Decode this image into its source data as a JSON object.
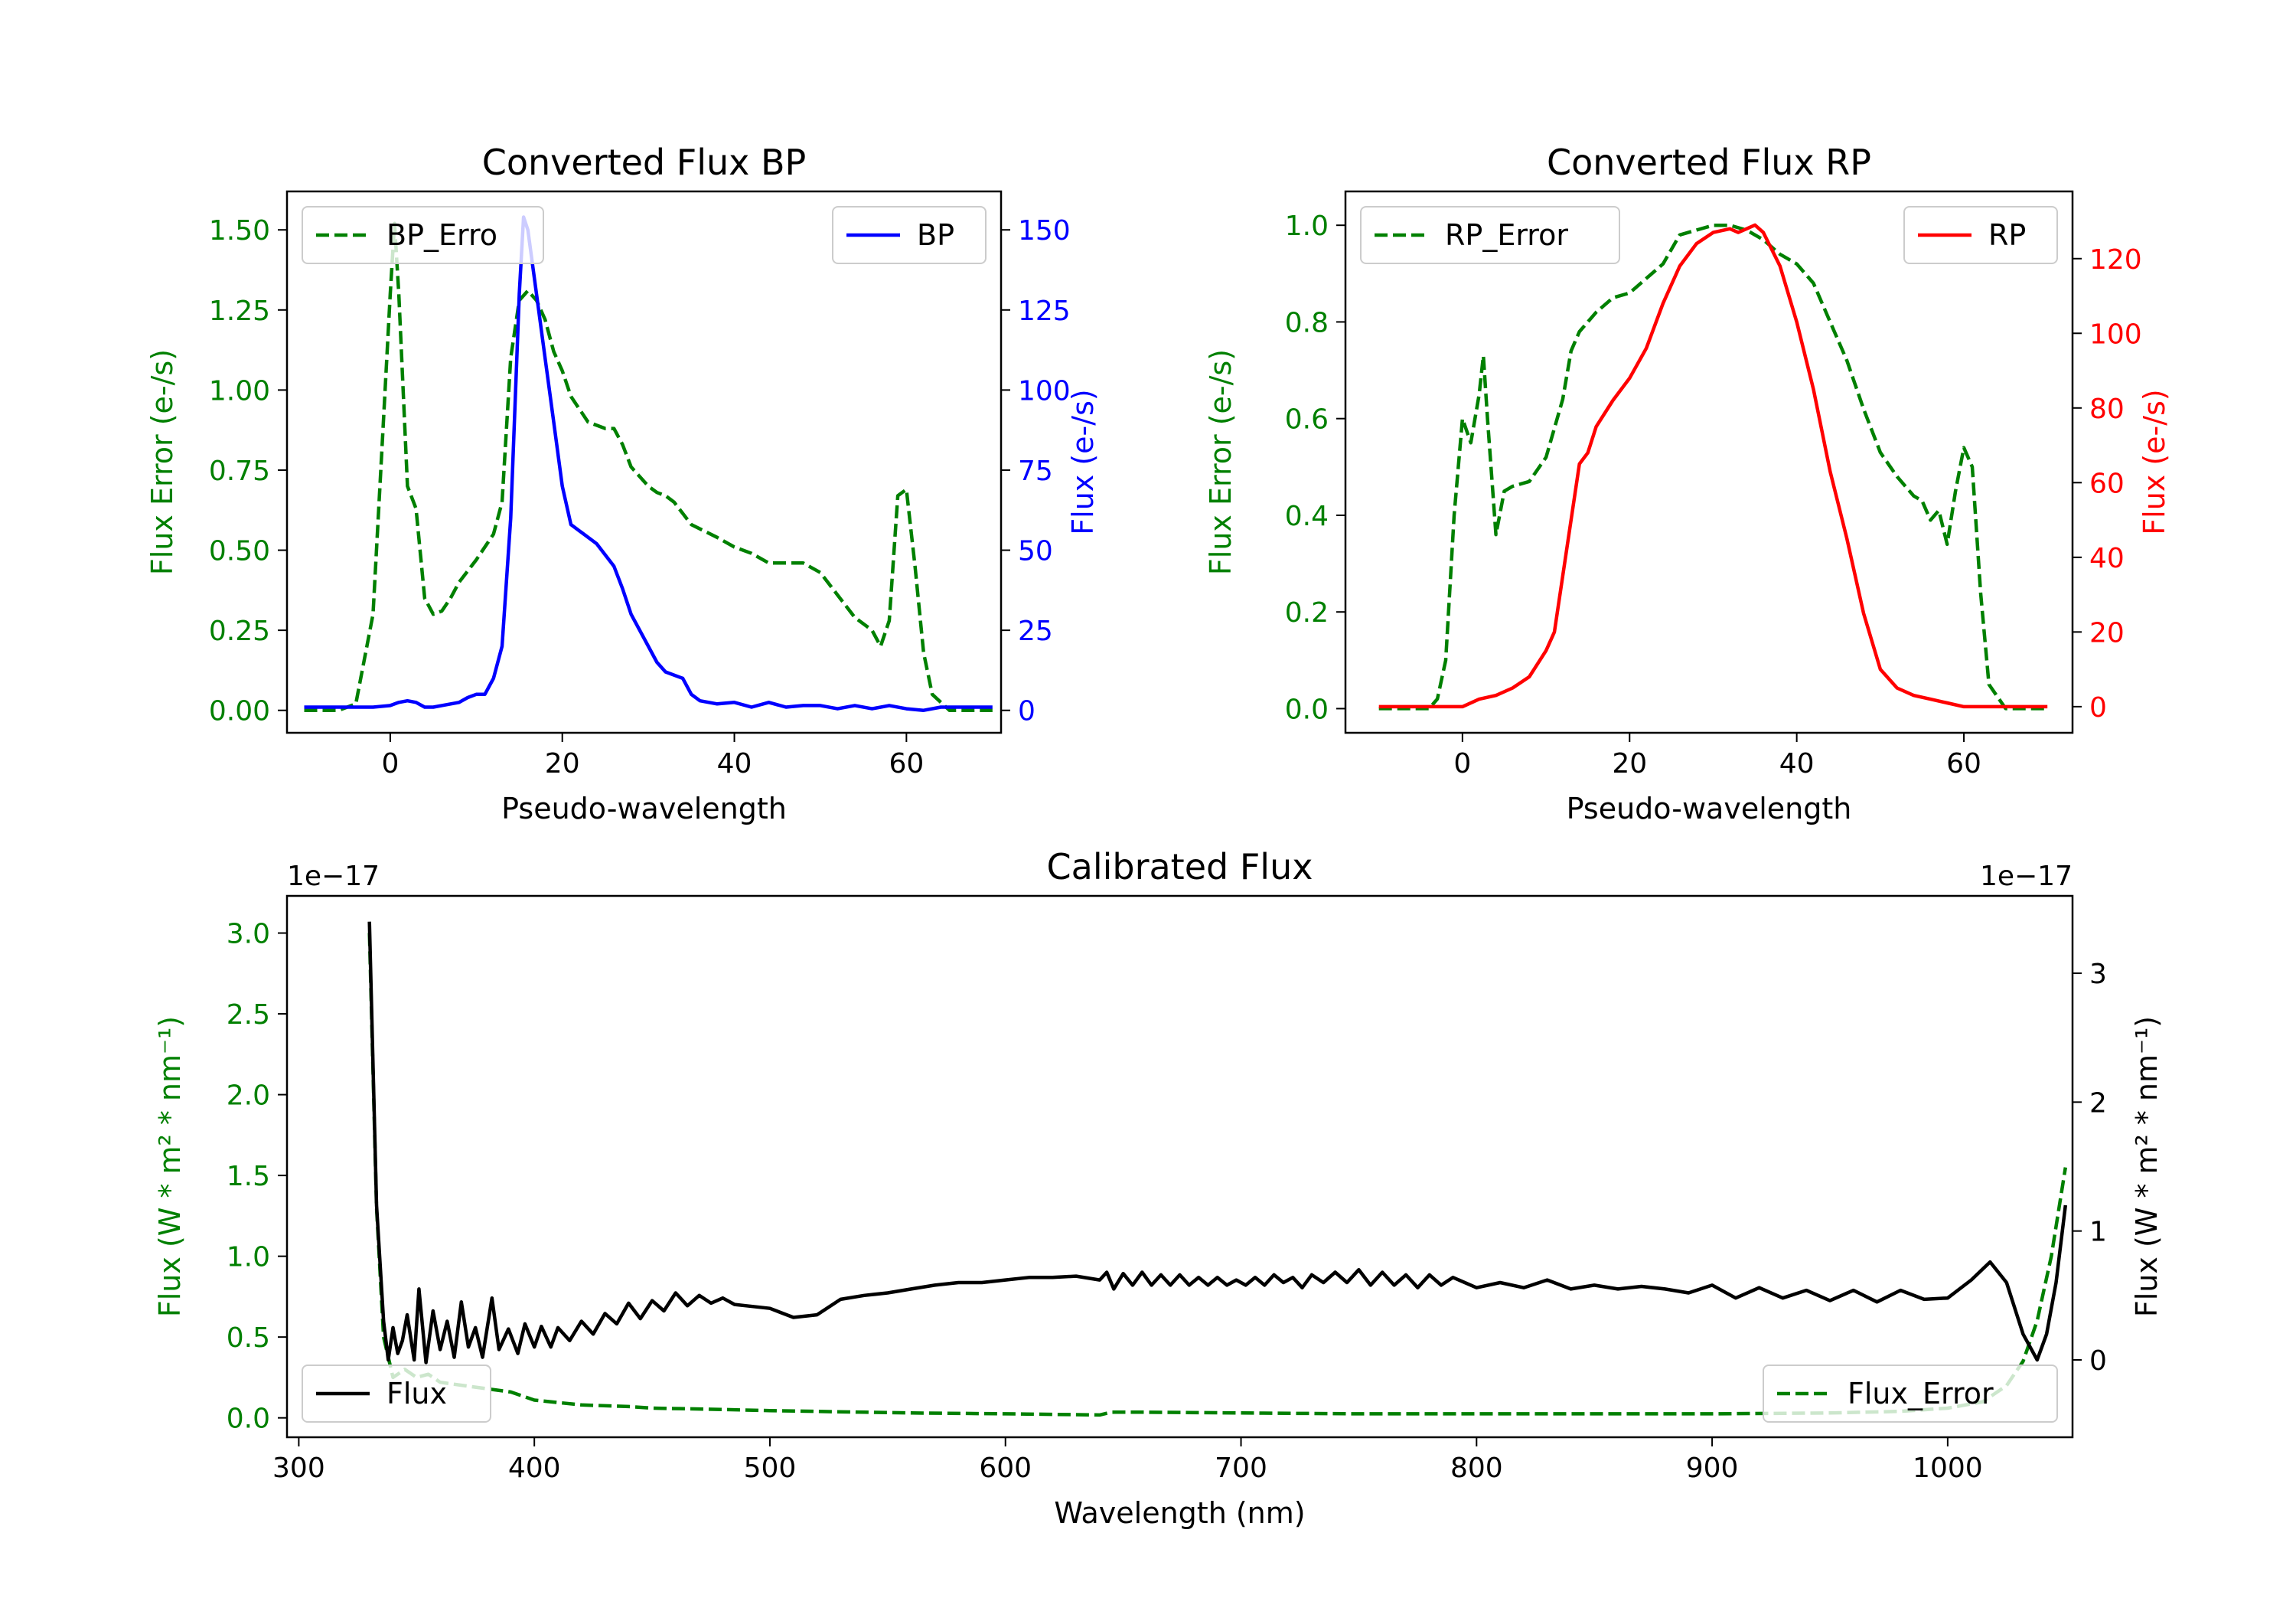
{
  "chart_data": [
    {
      "type": "line",
      "title": "Converted Flux BP",
      "xlabel": "Pseudo-wavelength",
      "ylabel_left": "Flux Error (e-/s)",
      "ylabel_right": "Flux (e-/s)",
      "xlim": [
        -12,
        71
      ],
      "ylim_left": [
        -0.07,
        1.62
      ],
      "ylim_right": [
        -7,
        162
      ],
      "xticks": [
        0,
        20,
        40,
        60
      ],
      "yticks_left": [
        0.0,
        0.25,
        0.5,
        0.75,
        1.0,
        1.25,
        1.5
      ],
      "yticks_left_labels": [
        "0.00",
        "0.25",
        "0.50",
        "0.75",
        "1.00",
        "1.25",
        "1.50"
      ],
      "yticks_right": [
        0,
        25,
        50,
        75,
        100,
        125,
        150
      ],
      "left_color": "#008000",
      "right_color": "#0000ff",
      "legend_left": "top-left",
      "legend_right": "top-right",
      "series": [
        {
          "name": "BP_Error",
          "legend_label": "BP_Erro",
          "axis": "left",
          "style": "dashed",
          "color": "#008000",
          "x": [
            -10,
            -6,
            -4,
            -2,
            -1,
            0,
            0.5,
            1,
            2,
            3,
            4,
            5,
            6,
            7,
            8,
            10,
            12,
            13,
            14,
            15,
            16,
            17,
            18,
            19,
            20,
            21,
            23,
            25,
            26,
            27,
            28,
            30,
            31,
            32,
            33,
            35,
            38,
            40,
            42,
            44,
            46,
            48,
            50,
            52,
            54,
            56,
            57,
            58,
            59,
            60,
            61,
            62,
            63,
            65,
            70
          ],
          "y": [
            0.0,
            0.0,
            0.02,
            0.3,
            0.8,
            1.3,
            1.52,
            1.3,
            0.7,
            0.63,
            0.35,
            0.3,
            0.31,
            0.35,
            0.4,
            0.47,
            0.55,
            0.65,
            1.1,
            1.28,
            1.31,
            1.28,
            1.22,
            1.12,
            1.06,
            0.98,
            0.9,
            0.88,
            0.88,
            0.83,
            0.76,
            0.7,
            0.68,
            0.67,
            0.65,
            0.58,
            0.54,
            0.51,
            0.49,
            0.46,
            0.46,
            0.46,
            0.43,
            0.36,
            0.29,
            0.25,
            0.2,
            0.28,
            0.67,
            0.69,
            0.45,
            0.18,
            0.05,
            0.0,
            0.0
          ]
        },
        {
          "name": "BP",
          "legend_label": "BP",
          "axis": "right",
          "style": "solid",
          "color": "#0000ff",
          "x": [
            -10,
            -4,
            -2,
            0,
            1,
            2,
            3,
            4,
            5,
            6,
            8,
            9,
            10,
            11,
            12,
            13,
            14,
            15,
            15.5,
            16,
            17,
            18,
            19,
            20,
            21,
            22,
            24,
            26,
            27,
            28,
            30,
            31,
            32,
            34,
            35,
            36,
            38,
            40,
            42,
            44,
            46,
            48,
            50,
            52,
            54,
            56,
            58,
            60,
            62,
            64,
            66,
            70
          ],
          "y": [
            1,
            1,
            1,
            1.5,
            2.5,
            3,
            2.5,
            1,
            1,
            1.5,
            2.5,
            4,
            5,
            5,
            10,
            20,
            60,
            130,
            154,
            150,
            130,
            110,
            90,
            70,
            58,
            56,
            52,
            45,
            38,
            30,
            20,
            15,
            12,
            10,
            5,
            3,
            2,
            2.5,
            1,
            2.5,
            1,
            1.5,
            1.5,
            0.5,
            1.5,
            0.5,
            1.5,
            0.5,
            0,
            1,
            1,
            1
          ]
        }
      ]
    },
    {
      "type": "line",
      "title": "Converted Flux RP",
      "xlabel": "Pseudo-wavelength",
      "ylabel_left": "Flux Error (e-/s)",
      "ylabel_right": "Flux (e-/s)",
      "xlim": [
        -14,
        73
      ],
      "ylim_left": [
        -0.05,
        1.07
      ],
      "ylim_right": [
        -7,
        138
      ],
      "xticks": [
        0,
        20,
        40,
        60
      ],
      "yticks_left": [
        0.0,
        0.2,
        0.4,
        0.6,
        0.8,
        1.0
      ],
      "yticks_left_labels": [
        "0.0",
        "0.2",
        "0.4",
        "0.6",
        "0.8",
        "1.0"
      ],
      "yticks_right": [
        0,
        20,
        40,
        60,
        80,
        100,
        120
      ],
      "left_color": "#008000",
      "right_color": "#ff0000",
      "legend_left": "top-left",
      "legend_right": "top-right",
      "series": [
        {
          "name": "RP_Error",
          "legend_label": "RP_Error",
          "axis": "left",
          "style": "dashed",
          "color": "#008000",
          "x": [
            -10,
            -4,
            -3,
            -2,
            -1,
            0,
            1,
            2,
            2.5,
            3,
            4,
            5,
            6,
            8,
            10,
            12,
            13,
            14,
            16,
            18,
            20,
            22,
            24,
            26,
            28,
            30,
            32,
            34,
            36,
            38,
            40,
            42,
            44,
            46,
            48,
            50,
            52,
            54,
            55,
            56,
            57,
            58,
            59,
            60,
            61,
            62,
            63,
            65,
            70
          ],
          "y": [
            0.0,
            0.0,
            0.02,
            0.1,
            0.4,
            0.6,
            0.55,
            0.65,
            0.73,
            0.6,
            0.36,
            0.45,
            0.46,
            0.47,
            0.52,
            0.64,
            0.74,
            0.78,
            0.82,
            0.85,
            0.86,
            0.89,
            0.92,
            0.98,
            0.99,
            1.0,
            1.0,
            0.99,
            0.97,
            0.94,
            0.92,
            0.88,
            0.8,
            0.72,
            0.62,
            0.53,
            0.48,
            0.44,
            0.43,
            0.39,
            0.41,
            0.34,
            0.45,
            0.54,
            0.5,
            0.24,
            0.05,
            0.0,
            0.0
          ]
        },
        {
          "name": "RP",
          "legend_label": "RP",
          "axis": "right",
          "style": "solid",
          "color": "#ff0000",
          "x": [
            -10,
            -4,
            0,
            2,
            4,
            6,
            8,
            10,
            11,
            12,
            13,
            14,
            15,
            16,
            18,
            20,
            22,
            24,
            26,
            28,
            30,
            32,
            33,
            34,
            35,
            36,
            38,
            40,
            42,
            44,
            46,
            48,
            50,
            52,
            54,
            56,
            58,
            60,
            62,
            70
          ],
          "y": [
            0,
            0,
            0,
            2,
            3,
            5,
            8,
            15,
            20,
            35,
            50,
            65,
            68,
            75,
            82,
            88,
            96,
            108,
            118,
            124,
            127,
            128,
            127,
            128,
            129,
            127,
            118,
            103,
            85,
            63,
            45,
            25,
            10,
            5,
            3,
            2,
            1,
            0,
            0,
            0
          ]
        }
      ]
    },
    {
      "type": "line",
      "title": "Calibrated Flux",
      "xlabel": "Wavelength (nm)",
      "ylabel_left": "Flux (W * m² * nm⁻¹)",
      "ylabel_right": "Flux (W * m² * nm⁻¹)",
      "offset_left": "1e−17",
      "offset_right": "1e−17",
      "xlim": [
        295,
        1053
      ],
      "ylim_left": [
        -0.12,
        3.23
      ],
      "ylim_right": [
        -0.6,
        3.6
      ],
      "xticks": [
        300,
        400,
        500,
        600,
        700,
        800,
        900,
        1000
      ],
      "yticks_left": [
        0.0,
        0.5,
        1.0,
        1.5,
        2.0,
        2.5,
        3.0
      ],
      "yticks_left_labels": [
        "0.0",
        "0.5",
        "1.0",
        "1.5",
        "2.0",
        "2.5",
        "3.0"
      ],
      "yticks_right": [
        0,
        1,
        2,
        3
      ],
      "left_color": "#008000",
      "right_color": "#000000",
      "legend_left": "bottom-left",
      "legend_right": "bottom-right",
      "series": [
        {
          "name": "Flux",
          "legend_label": "Flux",
          "axis": "right",
          "style": "solid",
          "color": "#000000",
          "x": [
            330,
            333,
            336,
            338,
            340,
            342,
            344,
            346,
            349,
            351,
            354,
            357,
            360,
            363,
            366,
            369,
            372,
            375,
            378,
            382,
            385,
            389,
            393,
            396,
            400,
            403,
            407,
            410,
            415,
            420,
            425,
            430,
            435,
            440,
            445,
            450,
            455,
            460,
            465,
            470,
            475,
            480,
            485,
            490,
            500,
            510,
            520,
            530,
            540,
            550,
            560,
            570,
            580,
            590,
            600,
            610,
            620,
            630,
            640,
            643,
            646,
            650,
            654,
            658,
            662,
            666,
            670,
            674,
            678,
            682,
            686,
            690,
            694,
            698,
            702,
            706,
            710,
            714,
            718,
            722,
            726,
            730,
            735,
            740,
            745,
            750,
            755,
            760,
            765,
            770,
            775,
            780,
            785,
            790,
            800,
            810,
            820,
            830,
            840,
            850,
            860,
            870,
            880,
            890,
            900,
            910,
            920,
            930,
            940,
            950,
            960,
            970,
            980,
            990,
            1000,
            1010,
            1018,
            1025,
            1032,
            1038,
            1042,
            1046,
            1050
          ],
          "y": [
            3.4,
            1.2,
            0.3,
            0.0,
            0.25,
            0.05,
            0.15,
            0.35,
            0.0,
            0.55,
            -0.02,
            0.38,
            0.08,
            0.3,
            0.02,
            0.45,
            0.1,
            0.25,
            0.02,
            0.48,
            0.08,
            0.24,
            0.05,
            0.28,
            0.1,
            0.26,
            0.1,
            0.25,
            0.15,
            0.3,
            0.2,
            0.36,
            0.28,
            0.44,
            0.32,
            0.46,
            0.38,
            0.52,
            0.42,
            0.5,
            0.44,
            0.48,
            0.43,
            0.42,
            0.4,
            0.33,
            0.35,
            0.47,
            0.5,
            0.52,
            0.55,
            0.58,
            0.6,
            0.6,
            0.62,
            0.64,
            0.64,
            0.65,
            0.62,
            0.68,
            0.55,
            0.67,
            0.58,
            0.68,
            0.58,
            0.66,
            0.58,
            0.66,
            0.58,
            0.64,
            0.58,
            0.64,
            0.58,
            0.62,
            0.58,
            0.64,
            0.58,
            0.66,
            0.6,
            0.64,
            0.56,
            0.66,
            0.6,
            0.68,
            0.6,
            0.7,
            0.58,
            0.68,
            0.58,
            0.66,
            0.56,
            0.66,
            0.58,
            0.64,
            0.56,
            0.6,
            0.56,
            0.62,
            0.55,
            0.58,
            0.55,
            0.57,
            0.55,
            0.52,
            0.58,
            0.48,
            0.56,
            0.48,
            0.54,
            0.46,
            0.54,
            0.45,
            0.54,
            0.47,
            0.48,
            0.62,
            0.76,
            0.6,
            0.2,
            0.0,
            0.2,
            0.6,
            1.2
          ]
        },
        {
          "name": "Flux_Error",
          "legend_label": "Flux_Error",
          "axis": "left",
          "style": "dashed",
          "color": "#008000",
          "x": [
            330,
            333,
            336,
            340,
            345,
            350,
            355,
            360,
            370,
            380,
            390,
            400,
            420,
            440,
            450,
            470,
            500,
            540,
            560,
            600,
            630,
            640,
            645,
            660,
            700,
            750,
            800,
            850,
            900,
            950,
            980,
            1000,
            1015,
            1025,
            1032,
            1038,
            1044,
            1050
          ],
          "y": [
            3.0,
            1.3,
            0.5,
            0.25,
            0.3,
            0.25,
            0.27,
            0.22,
            0.2,
            0.18,
            0.16,
            0.11,
            0.08,
            0.07,
            0.06,
            0.055,
            0.045,
            0.035,
            0.03,
            0.025,
            0.02,
            0.018,
            0.035,
            0.035,
            0.03,
            0.025,
            0.025,
            0.025,
            0.025,
            0.03,
            0.04,
            0.06,
            0.1,
            0.2,
            0.35,
            0.6,
            1.0,
            1.55
          ]
        }
      ]
    }
  ]
}
